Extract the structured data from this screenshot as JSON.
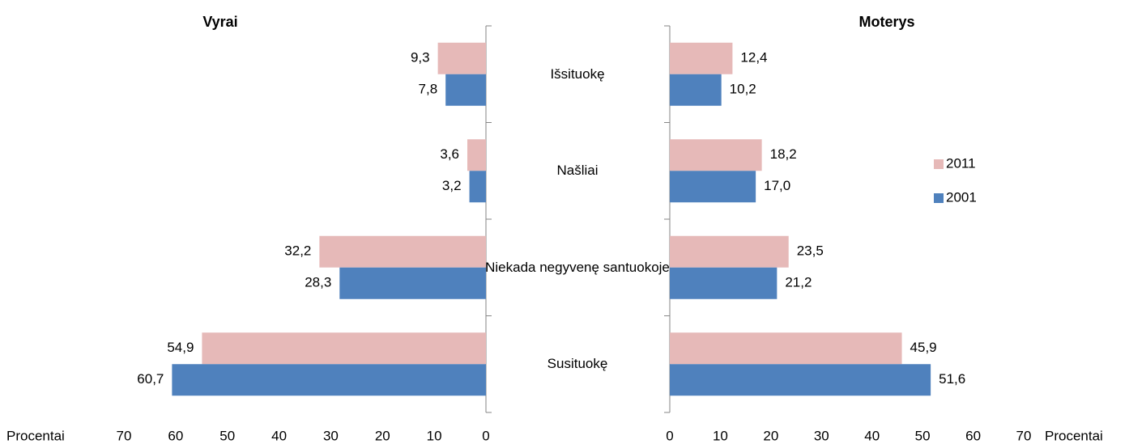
{
  "chart_data": {
    "type": "butterfly-bar",
    "categories": [
      "Išsituokę",
      "Našliai",
      "Niekada negyvenę santuokoje",
      "Susituokę"
    ],
    "series": [
      {
        "name": "2011",
        "color": "#e6b9b8"
      },
      {
        "name": "2001",
        "color": "#4f81bd"
      }
    ],
    "xlim": [
      0,
      70
    ],
    "xticks": [
      0,
      10,
      20,
      30,
      40,
      50,
      60,
      70
    ],
    "xlabel": "Procentai",
    "panels": [
      {
        "title": "Vyrai",
        "direction": "left",
        "series": [
          {
            "values": [
              9.3,
              3.6,
              32.2,
              54.9
            ],
            "value_labels": [
              "9,3",
              "3,6",
              "32,2",
              "54,9"
            ]
          },
          {
            "values": [
              7.8,
              3.2,
              28.3,
              60.7
            ],
            "value_labels": [
              "7,8",
              "3,2",
              "28,3",
              "60,7"
            ]
          }
        ]
      },
      {
        "title": "Moterys",
        "direction": "right",
        "series": [
          {
            "values": [
              12.4,
              18.2,
              23.5,
              45.9
            ],
            "value_labels": [
              "12,4",
              "18,2",
              "23,5",
              "45,9"
            ]
          },
          {
            "values": [
              10.2,
              17.0,
              21.2,
              51.6
            ],
            "value_labels": [
              "10,2",
              "17,0",
              "21,2",
              "51,6"
            ]
          }
        ]
      }
    ]
  }
}
